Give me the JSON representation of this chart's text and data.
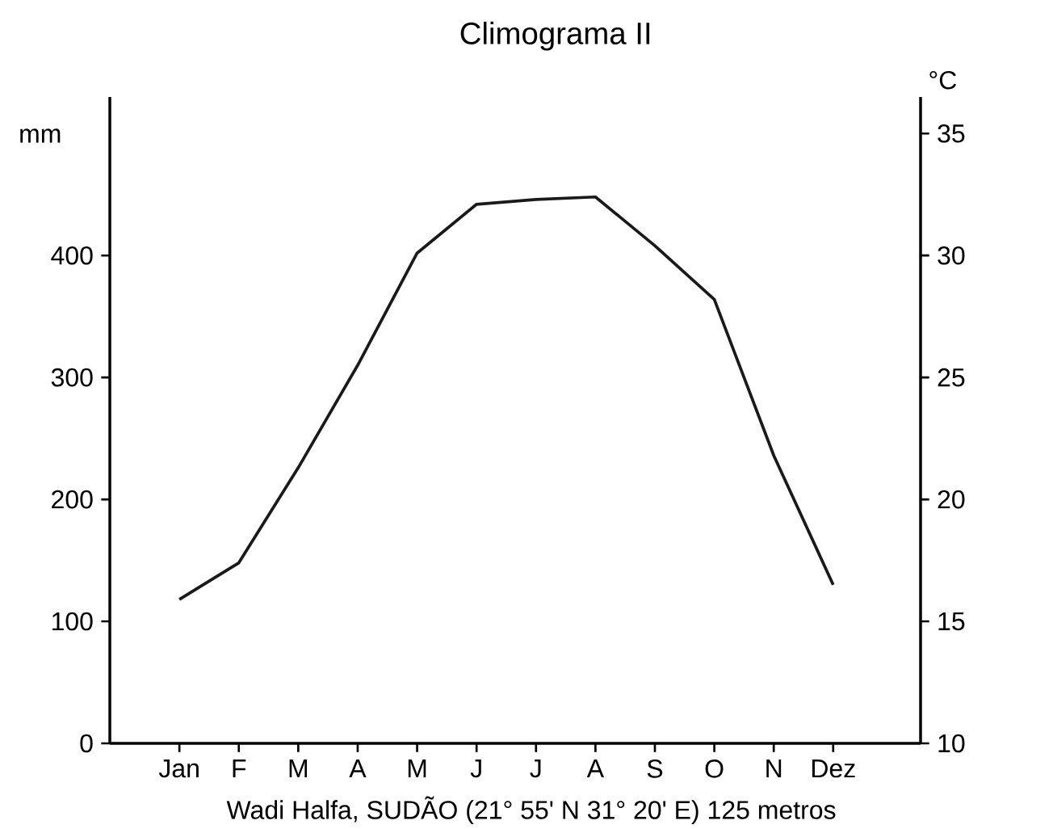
{
  "chart_data": {
    "type": "line",
    "title": "Climograma II",
    "categories": [
      "Jan",
      "F",
      "M",
      "A",
      "M",
      "J",
      "J",
      "A",
      "S",
      "O",
      "N",
      "Dez"
    ],
    "series": [
      {
        "color": "#1a1a1a",
        "axis": "y2",
        "values": [
          15.9,
          17.4,
          21.3,
          25.5,
          30.1,
          32.1,
          32.3,
          32.4,
          30.4,
          28.2,
          21.8,
          16.5
        ]
      }
    ],
    "ylabel": "mm",
    "y2label": "°C",
    "ylim": [
      0,
      530
    ],
    "yticks": [
      0,
      100,
      200,
      300,
      400
    ],
    "y2lim": [
      10,
      36.5
    ],
    "y2ticks": [
      10,
      15,
      20,
      25,
      30,
      35
    ],
    "annotations": [
      "Wadi Halfa, SUDÃO      (21° 55' N 31° 20' E) 125 metros"
    ]
  }
}
